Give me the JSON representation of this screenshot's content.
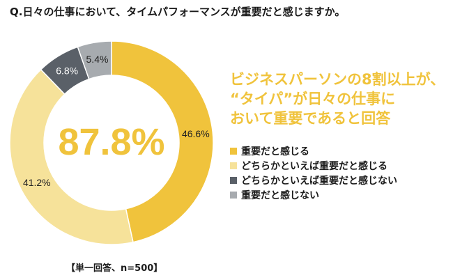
{
  "question": "Q.日々の仕事において、タイムパフォーマンスが重要だと感じますか。",
  "headline": [
    "ビジネスパーソンの8割以上が、",
    "“タイパ”が日々の仕事に",
    "おいて重要であると回答"
  ],
  "footnote": "【単一回答、n=500】",
  "chart_data": {
    "type": "pie",
    "donut": true,
    "title": "Q.日々の仕事において、タイムパフォーマンスが重要だと感じますか。",
    "center_label": "87.8%",
    "unit": "%",
    "legend_position": "right",
    "series": [
      {
        "name": "重要だと感じる",
        "value": 46.6,
        "label": "46.6%",
        "color": "#f0c33c"
      },
      {
        "name": "どちらかといえば重要だと感じる",
        "value": 41.2,
        "label": "41.2%",
        "color": "#f6e29a"
      },
      {
        "name": "どちらかといえば重要だと感じない",
        "value": 6.8,
        "label": "6.8%",
        "color": "#5a6068"
      },
      {
        "name": "重要だと感じない",
        "value": 5.4,
        "label": "5.4%",
        "color": "#a7abaf"
      }
    ]
  }
}
